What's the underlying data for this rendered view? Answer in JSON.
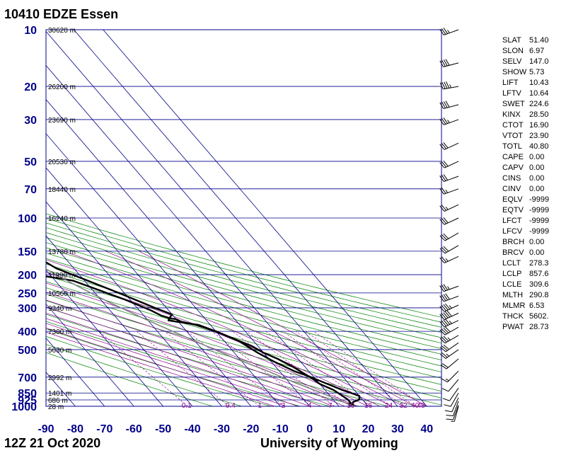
{
  "title": "10410 EDZE Essen",
  "footer": {
    "time": "12Z 21 Oct 2020",
    "source": "University of Wyoming"
  },
  "colors": {
    "grid": "#00008b",
    "isotherm": "#00008b",
    "dry_adiabat": "#008000",
    "moist_adiabat": "#8b008b",
    "mixing_ratio": "#8b008b",
    "parcel": "#808080",
    "sounding": "#000000"
  },
  "chart_data": {
    "type": "line",
    "title": "10410 EDZE Essen",
    "xlabel": "",
    "ylabel": "",
    "xlim": [
      -90,
      45
    ],
    "ylim": [
      1000,
      10
    ],
    "y_scale": "log",
    "grid": true,
    "x_ticks": [
      "-90",
      "-80",
      "-70",
      "-60",
      "-50",
      "-40",
      "-30",
      "-20",
      "-10",
      "0",
      "10",
      "20",
      "30",
      "40"
    ],
    "pressure_levels": [
      10,
      20,
      30,
      50,
      70,
      100,
      150,
      200,
      250,
      300,
      400,
      500,
      700,
      850,
      925,
      1000
    ],
    "pressure_labels": [
      "10",
      "20",
      "30",
      "50",
      "70",
      "100",
      "150",
      "200",
      "250",
      "300",
      "400",
      "500",
      "700",
      "850",
      "925",
      "1000"
    ],
    "height_labels": [
      {
        "p": 10,
        "h": "30620 m"
      },
      {
        "p": 20,
        "h": "26200 m"
      },
      {
        "p": 30,
        "h": "23690 m"
      },
      {
        "p": 50,
        "h": "20530 m"
      },
      {
        "p": 70,
        "h": "18440 m"
      },
      {
        "p": 100,
        "h": "16240 m"
      },
      {
        "p": 150,
        "h": "13780 m"
      },
      {
        "p": 200,
        "h": "11990 m"
      },
      {
        "p": 250,
        "h": "10560 m"
      },
      {
        "p": 300,
        "h": "9340 m"
      },
      {
        "p": 400,
        "h": "7300 m"
      },
      {
        "p": 500,
        "h": "5630 m"
      },
      {
        "p": 700,
        "h": "2992 m"
      },
      {
        "p": 850,
        "h": "1401 m"
      },
      {
        "p": 925,
        "h": "686 m"
      },
      {
        "p": 1000,
        "h": "28 m"
      }
    ],
    "mixing_ratio_labels": [
      {
        "x": -42,
        "t": "0.1"
      },
      {
        "x": -27,
        "t": "0.4"
      },
      {
        "x": -17,
        "t": "1"
      },
      {
        "x": -9,
        "t": "2"
      },
      {
        "x": 0,
        "t": "4"
      },
      {
        "x": 7,
        "t": "7"
      },
      {
        "x": 14,
        "t": "10"
      },
      {
        "x": 20,
        "t": "16"
      },
      {
        "x": 27,
        "t": "24"
      },
      {
        "x": 32,
        "t": "32"
      },
      {
        "x": 36,
        "t": "40"
      },
      {
        "x": 38,
        "t": "48"
      }
    ],
    "series": [
      {
        "role": "temperature",
        "points": [
          [
            -44,
            10
          ],
          [
            -40,
            13
          ],
          [
            -42,
            15
          ],
          [
            -44,
            17
          ],
          [
            -45,
            20
          ],
          [
            -47,
            25
          ],
          [
            -45,
            28
          ],
          [
            -47,
            33
          ],
          [
            -47,
            45
          ],
          [
            -47,
            55
          ],
          [
            -47,
            75
          ],
          [
            -48,
            100
          ],
          [
            -49,
            125
          ],
          [
            -48,
            140
          ],
          [
            -49,
            155
          ],
          [
            -48,
            170
          ],
          [
            -46,
            185
          ],
          [
            -40,
            210
          ],
          [
            -31,
            255
          ],
          [
            -24,
            300
          ],
          [
            -20,
            325
          ],
          [
            -22,
            340
          ],
          [
            -23,
            350
          ],
          [
            -14,
            370
          ],
          [
            -10,
            400
          ],
          [
            -5,
            450
          ],
          [
            -2,
            520
          ],
          [
            1,
            580
          ],
          [
            5,
            650
          ],
          [
            9,
            700
          ],
          [
            12,
            750
          ],
          [
            16,
            820
          ],
          [
            20,
            880
          ],
          [
            19,
            920
          ],
          [
            16,
            950
          ],
          [
            15,
            985
          ],
          [
            15,
            1000
          ]
        ]
      },
      {
        "role": "dewpoint",
        "points": [
          [
            -65,
            10
          ],
          [
            -65,
            13
          ],
          [
            -67,
            16
          ],
          [
            -65,
            19
          ],
          [
            -68,
            22
          ],
          [
            -70,
            25
          ],
          [
            -71,
            50
          ],
          [
            -71,
            70
          ],
          [
            -70,
            90
          ],
          [
            -68,
            125
          ],
          [
            -65,
            150
          ],
          [
            -62,
            160
          ],
          [
            -60,
            165
          ],
          [
            -63,
            180
          ],
          [
            -55,
            200
          ],
          [
            -44,
            215
          ],
          [
            -32,
            270
          ],
          [
            -26,
            310
          ],
          [
            -24,
            330
          ],
          [
            -22,
            340
          ],
          [
            -20,
            345
          ],
          [
            -19,
            355
          ],
          [
            -15,
            370
          ],
          [
            -10,
            400
          ],
          [
            -2,
            480
          ],
          [
            0,
            520
          ],
          [
            3,
            560
          ],
          [
            6,
            620
          ],
          [
            8,
            680
          ],
          [
            9,
            710
          ],
          [
            10,
            760
          ],
          [
            13,
            820
          ],
          [
            15,
            920
          ],
          [
            15,
            960
          ],
          [
            14,
            980
          ],
          [
            15,
            1000
          ]
        ]
      },
      {
        "role": "parcel",
        "points": [
          [
            15,
            1000
          ],
          [
            14.5,
            990
          ],
          [
            12,
            930
          ],
          [
            8,
            850
          ],
          [
            2,
            750
          ],
          [
            -4,
            650
          ],
          [
            -12,
            550
          ],
          [
            -20,
            450
          ],
          [
            -30,
            350
          ],
          [
            -38,
            280
          ],
          [
            -44,
            230
          ],
          [
            -48,
            200
          ],
          [
            -52,
            170
          ],
          [
            -55,
            150
          ]
        ]
      }
    ]
  },
  "indices": [
    {
      "k": "SLAT",
      "v": "51.40"
    },
    {
      "k": "SLON",
      "v": "6.97"
    },
    {
      "k": "SELV",
      "v": "147.0"
    },
    {
      "k": "SHOW",
      "v": "5.73"
    },
    {
      "k": "LIFT",
      "v": "10.43"
    },
    {
      "k": "LFTV",
      "v": "10.64"
    },
    {
      "k": "SWET",
      "v": "224.6"
    },
    {
      "k": "KINX",
      "v": "28.50"
    },
    {
      "k": "CTOT",
      "v": "16.90"
    },
    {
      "k": "VTOT",
      "v": "23.90"
    },
    {
      "k": "TOTL",
      "v": "40.80"
    },
    {
      "k": "CAPE",
      "v": "0.00"
    },
    {
      "k": "CAPV",
      "v": "0.00"
    },
    {
      "k": "CINS",
      "v": "0.00"
    },
    {
      "k": "CINV",
      "v": "0.00"
    },
    {
      "k": "EQLV",
      "v": "-9999"
    },
    {
      "k": "EQTV",
      "v": "-9999"
    },
    {
      "k": "LFCT",
      "v": "-9999"
    },
    {
      "k": "LFCV",
      "v": "-9999"
    },
    {
      "k": "BRCH",
      "v": "0.00"
    },
    {
      "k": "BRCV",
      "v": "0.00"
    },
    {
      "k": "LCLT",
      "v": "278.3"
    },
    {
      "k": "LCLP",
      "v": "857.6"
    },
    {
      "k": "LCLE",
      "v": "309.6"
    },
    {
      "k": "MLTH",
      "v": "290.8"
    },
    {
      "k": "MLMR",
      "v": "6.53"
    },
    {
      "k": "THCK",
      "v": "5602."
    },
    {
      "k": "PWAT",
      "v": "28.73"
    }
  ],
  "wind_barbs": [
    {
      "p": 10,
      "dir": 250,
      "spd": 35
    },
    {
      "p": 15,
      "dir": 255,
      "spd": 40
    },
    {
      "p": 20,
      "dir": 260,
      "spd": 45
    },
    {
      "p": 25,
      "dir": 255,
      "spd": 40
    },
    {
      "p": 30,
      "dir": 250,
      "spd": 35
    },
    {
      "p": 40,
      "dir": 245,
      "spd": 30
    },
    {
      "p": 50,
      "dir": 245,
      "spd": 30
    },
    {
      "p": 60,
      "dir": 250,
      "spd": 30
    },
    {
      "p": 70,
      "dir": 250,
      "spd": 25
    },
    {
      "p": 85,
      "dir": 245,
      "spd": 25
    },
    {
      "p": 100,
      "dir": 245,
      "spd": 30
    },
    {
      "p": 120,
      "dir": 240,
      "spd": 30
    },
    {
      "p": 140,
      "dir": 240,
      "spd": 30
    },
    {
      "p": 160,
      "dir": 245,
      "spd": 25
    },
    {
      "p": 230,
      "dir": 250,
      "spd": 35
    },
    {
      "p": 260,
      "dir": 250,
      "spd": 40
    },
    {
      "p": 290,
      "dir": 245,
      "spd": 45
    },
    {
      "p": 320,
      "dir": 245,
      "spd": 50
    },
    {
      "p": 350,
      "dir": 245,
      "spd": 45
    },
    {
      "p": 380,
      "dir": 240,
      "spd": 40
    },
    {
      "p": 420,
      "dir": 240,
      "spd": 35
    },
    {
      "p": 460,
      "dir": 235,
      "spd": 30
    },
    {
      "p": 500,
      "dir": 235,
      "spd": 25
    },
    {
      "p": 560,
      "dir": 230,
      "spd": 20
    },
    {
      "p": 650,
      "dir": 225,
      "spd": 15
    },
    {
      "p": 720,
      "dir": 220,
      "spd": 10
    },
    {
      "p": 800,
      "dir": 215,
      "spd": 10
    },
    {
      "p": 850,
      "dir": 210,
      "spd": 10
    },
    {
      "p": 900,
      "dir": 205,
      "spd": 10
    },
    {
      "p": 940,
      "dir": 200,
      "spd": 10
    },
    {
      "p": 985,
      "dir": 200,
      "spd": 10
    },
    {
      "p": 1000,
      "dir": 195,
      "spd": 5
    }
  ]
}
